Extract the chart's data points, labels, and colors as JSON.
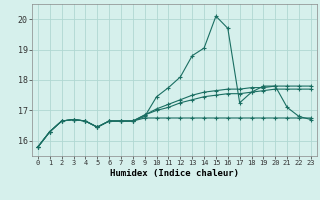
{
  "x": [
    0,
    1,
    2,
    3,
    4,
    5,
    6,
    7,
    8,
    9,
    10,
    11,
    12,
    13,
    14,
    15,
    16,
    17,
    18,
    19,
    20,
    21,
    22,
    23
  ],
  "line1": [
    15.8,
    16.3,
    16.65,
    16.7,
    16.65,
    16.45,
    16.65,
    16.65,
    16.65,
    16.8,
    17.45,
    17.75,
    18.1,
    18.8,
    19.05,
    20.1,
    19.7,
    17.25,
    17.6,
    17.8,
    17.8,
    17.1,
    16.8,
    16.7
  ],
  "line2": [
    15.8,
    16.3,
    16.65,
    16.7,
    16.65,
    16.45,
    16.65,
    16.65,
    16.65,
    16.85,
    17.05,
    17.2,
    17.35,
    17.5,
    17.6,
    17.65,
    17.7,
    17.7,
    17.75,
    17.75,
    17.8,
    17.8,
    17.8,
    17.8
  ],
  "line3": [
    15.8,
    16.3,
    16.65,
    16.7,
    16.65,
    16.45,
    16.65,
    16.65,
    16.65,
    16.85,
    17.0,
    17.1,
    17.25,
    17.35,
    17.45,
    17.5,
    17.55,
    17.55,
    17.6,
    17.65,
    17.7,
    17.7,
    17.7,
    17.7
  ],
  "line4": [
    15.8,
    16.3,
    16.65,
    16.7,
    16.65,
    16.45,
    16.65,
    16.65,
    16.65,
    16.75,
    16.75,
    16.75,
    16.75,
    16.75,
    16.75,
    16.75,
    16.75,
    16.75,
    16.75,
    16.75,
    16.75,
    16.75,
    16.75,
    16.75
  ],
  "line_color": "#1a6e62",
  "bg_color": "#d6f0ec",
  "grid_color": "#b0d8d2",
  "xlabel": "Humidex (Indice chaleur)",
  "ylim": [
    15.5,
    20.5
  ],
  "xlim": [
    -0.5,
    23.5
  ],
  "yticks": [
    16,
    17,
    18,
    19,
    20
  ],
  "xticks": [
    0,
    1,
    2,
    3,
    4,
    5,
    6,
    7,
    8,
    9,
    10,
    11,
    12,
    13,
    14,
    15,
    16,
    17,
    18,
    19,
    20,
    21,
    22,
    23
  ]
}
